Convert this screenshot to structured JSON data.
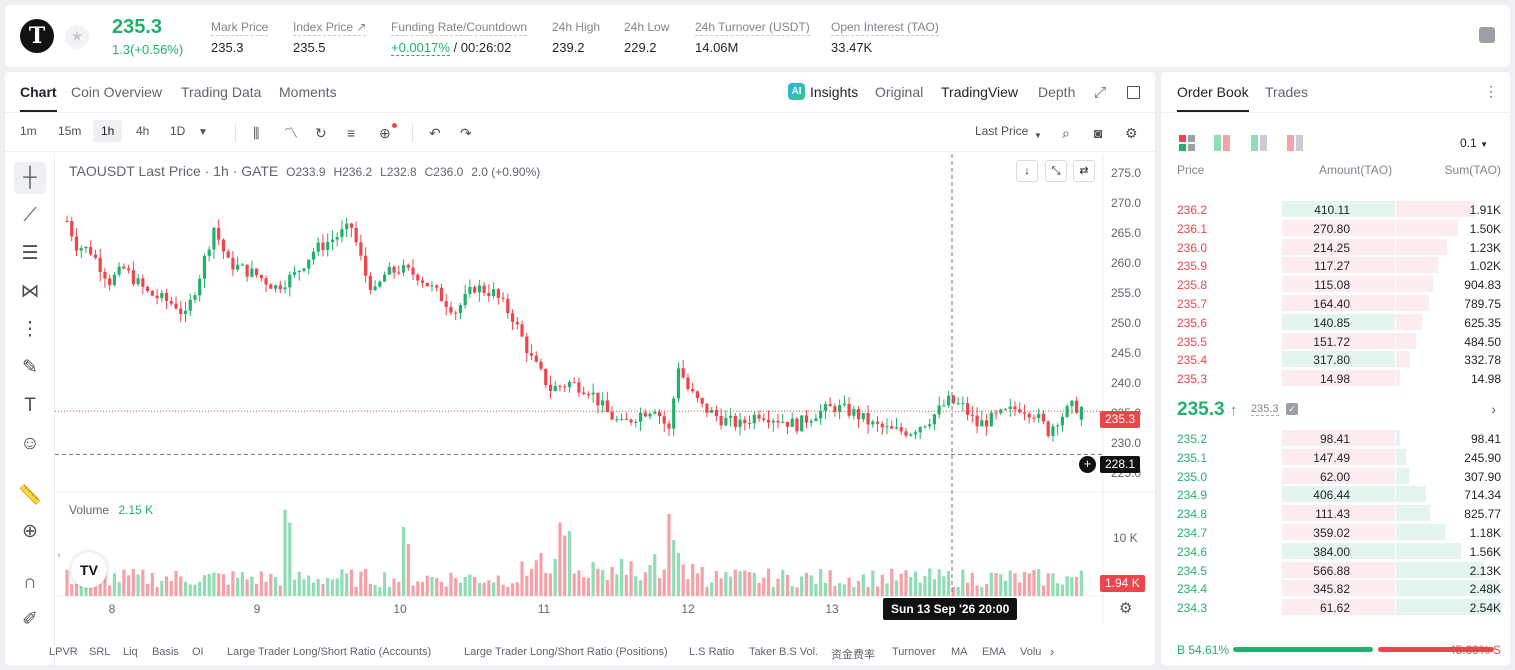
{
  "header": {
    "logo_letter": "T",
    "last_price": "235.3",
    "change": "1.3(+0.56%)",
    "stats": [
      {
        "label": "Mark Price",
        "value": "235.3"
      },
      {
        "label": "Index Price ↗",
        "value": "235.5"
      },
      {
        "label": "Funding Rate/Countdown",
        "value_green": "+0.0017%",
        "value": "/ 00:26:02"
      },
      {
        "label": "24h High",
        "value": "239.2"
      },
      {
        "label": "24h Low",
        "value": "229.2"
      },
      {
        "label": "24h Turnover (USDT)",
        "value": "14.06M"
      },
      {
        "label": "Open Interest (TAO)",
        "value": "33.47K"
      }
    ]
  },
  "chart_tabs": {
    "chart": "Chart",
    "overview": "Coin Overview",
    "trading_data": "Trading Data",
    "moments": "Moments",
    "insights": "Insights",
    "original": "Original",
    "tradingview": "TradingView",
    "depth": "Depth"
  },
  "toolbar": {
    "timeframes": [
      "1m",
      "15m",
      "1h",
      "4h",
      "1D"
    ],
    "active_timeframe": "1h",
    "price_type": "Last Price"
  },
  "legend": {
    "symbol": "TAOUSDT Last Price · 1h · GATE",
    "o": "O233.9",
    "h": "H236.2",
    "l": "L232.8",
    "c": "C236.0",
    "chg": "2.0 (+0.90%)",
    "volume_label": "Volume",
    "volume_value": "2.15 K"
  },
  "price_tags": {
    "last": "235.3",
    "cursor": "228.1",
    "volume": "1.94 K"
  },
  "time_tag": "Sun 13 Sep '26   20:00",
  "indicators": [
    "LPVR",
    "SRL",
    "Liq",
    "Basis",
    "OI",
    "Large Trader Long/Short Ratio (Accounts)",
    "Large Trader Long/Short Ratio (Positions)",
    "L.S Ratio",
    "Taker B.S Vol.",
    "资金费率",
    "Turnover",
    "MA",
    "EMA",
    "Volu"
  ],
  "chart_data": {
    "type": "candlestick",
    "symbol": "TAOUSDT",
    "interval": "1h",
    "y_ticks": [
      275.0,
      270.0,
      265.0,
      260.0,
      255.0,
      250.0,
      245.0,
      240.0,
      235.0,
      230.0,
      225.0
    ],
    "ylim": [
      223.5,
      276.0
    ],
    "volume_tick": "10 K",
    "x_ticks": [
      "8",
      "9",
      "10",
      "11",
      "12",
      "13"
    ],
    "last_price": 235.3,
    "cursor_price": 228.1,
    "anchors": [
      [
        0,
        267
      ],
      [
        2,
        263
      ],
      [
        5,
        262
      ],
      [
        9,
        257
      ],
      [
        12,
        259
      ],
      [
        17,
        255
      ],
      [
        20,
        254
      ],
      [
        23,
        253
      ],
      [
        25,
        251
      ],
      [
        28,
        258
      ],
      [
        31,
        266
      ],
      [
        34,
        260
      ],
      [
        37,
        259
      ],
      [
        40,
        258
      ],
      [
        44,
        256
      ],
      [
        48,
        258
      ],
      [
        52,
        262
      ],
      [
        56,
        264
      ],
      [
        60,
        266
      ],
      [
        63,
        258
      ],
      [
        65,
        255
      ],
      [
        67,
        258
      ],
      [
        70,
        259
      ],
      [
        74,
        258
      ],
      [
        78,
        255
      ],
      [
        82,
        252
      ],
      [
        86,
        256
      ],
      [
        90,
        255
      ],
      [
        94,
        251
      ],
      [
        98,
        244
      ],
      [
        102,
        239
      ],
      [
        106,
        240
      ],
      [
        110,
        239
      ],
      [
        114,
        235
      ],
      [
        117,
        233
      ],
      [
        121,
        235
      ],
      [
        124,
        236
      ],
      [
        127,
        232
      ],
      [
        129,
        243
      ],
      [
        131,
        239
      ],
      [
        134,
        236
      ],
      [
        138,
        234
      ],
      [
        142,
        233
      ],
      [
        146,
        235
      ],
      [
        150,
        234
      ],
      [
        154,
        233
      ],
      [
        158,
        235
      ],
      [
        162,
        236
      ],
      [
        166,
        235
      ],
      [
        170,
        233
      ],
      [
        174,
        232
      ],
      [
        178,
        232
      ],
      [
        182,
        234
      ],
      [
        186,
        237
      ],
      [
        189,
        236
      ],
      [
        192,
        233
      ],
      [
        195,
        234
      ],
      [
        198,
        235
      ],
      [
        201,
        236
      ],
      [
        204,
        235
      ],
      [
        207,
        232
      ],
      [
        209,
        234
      ],
      [
        212,
        236
      ],
      [
        214,
        236
      ]
    ],
    "volume_spikes": {
      "46": 10,
      "47": 8.5,
      "71": 8,
      "72": 6,
      "104": 8.5,
      "105": 7,
      "106": 7.5,
      "127": 9.5,
      "128": 6.5,
      "129": 5
    }
  },
  "order_book": {
    "tabs": [
      "Order Book",
      "Trades"
    ],
    "precision": "0.1",
    "headers": {
      "price": "Price",
      "amount": "Amount(TAO)",
      "sum": "Sum(TAO)"
    },
    "asks": [
      {
        "price": "236.2",
        "amount": "410.11",
        "sum": "1.91K",
        "big": true
      },
      {
        "price": "236.1",
        "amount": "270.80",
        "sum": "1.50K"
      },
      {
        "price": "236.0",
        "amount": "214.25",
        "sum": "1.23K"
      },
      {
        "price": "235.9",
        "amount": "117.27",
        "sum": "1.02K"
      },
      {
        "price": "235.8",
        "amount": "115.08",
        "sum": "904.83"
      },
      {
        "price": "235.7",
        "amount": "164.40",
        "sum": "789.75"
      },
      {
        "price": "235.6",
        "amount": "140.85",
        "sum": "625.35",
        "big": true
      },
      {
        "price": "235.5",
        "amount": "151.72",
        "sum": "484.50"
      },
      {
        "price": "235.4",
        "amount": "317.80",
        "sum": "332.78",
        "big": true
      },
      {
        "price": "235.3",
        "amount": "14.98",
        "sum": "14.98"
      }
    ],
    "mid_price": "235.3",
    "mid_arrow": "↑",
    "mark_price": "235.3",
    "bids": [
      {
        "price": "235.2",
        "amount": "98.41",
        "sum": "98.41"
      },
      {
        "price": "235.1",
        "amount": "147.49",
        "sum": "245.90"
      },
      {
        "price": "235.0",
        "amount": "62.00",
        "sum": "307.90"
      },
      {
        "price": "234.9",
        "amount": "406.44",
        "sum": "714.34",
        "big": true
      },
      {
        "price": "234.8",
        "amount": "111.43",
        "sum": "825.77"
      },
      {
        "price": "234.7",
        "amount": "359.02",
        "sum": "1.18K"
      },
      {
        "price": "234.6",
        "amount": "384.00",
        "sum": "1.56K",
        "big": true
      },
      {
        "price": "234.5",
        "amount": "566.88",
        "sum": "2.13K"
      },
      {
        "price": "234.4",
        "amount": "345.82",
        "sum": "2.48K"
      },
      {
        "price": "234.3",
        "amount": "61.62",
        "sum": "2.54K"
      }
    ],
    "buy_ratio": "54.61%",
    "sell_ratio": "45.39%",
    "buy_label": "B",
    "sell_label": "S"
  },
  "colors": {
    "up": "#20b26c",
    "down": "#ef454a",
    "up_vol": "#8fdcb5",
    "down_vol": "#f5a1a7"
  }
}
